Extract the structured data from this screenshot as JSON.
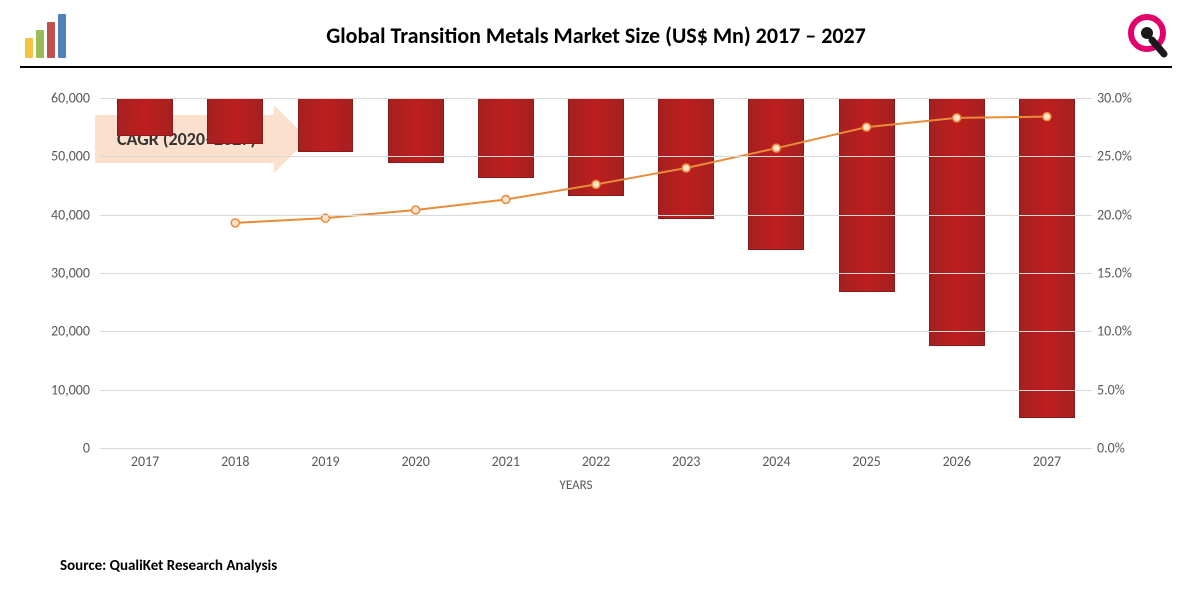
{
  "title": "Global Transition Metals Market Size (US$ Mn) 2017 – 2027",
  "cagr_label": "CAGR (2020–2027)",
  "source": "Source: QualiKet Research Analysis",
  "x_axis_title": "YEARS",
  "chart": {
    "type": "bar+line",
    "categories": [
      "2017",
      "2018",
      "2019",
      "2020",
      "2021",
      "2022",
      "2023",
      "2024",
      "2025",
      "2026",
      "2027"
    ],
    "bar_values": [
      6500,
      7800,
      9300,
      11200,
      13700,
      16800,
      20800,
      26000,
      33200,
      42500,
      54800
    ],
    "bar_color": "#b81e1e",
    "bar_border_color": "#8c1a1a",
    "line_values": [
      null,
      19.3,
      19.7,
      20.4,
      21.3,
      22.6,
      24.0,
      25.7,
      27.5,
      28.3,
      28.4
    ],
    "line_color": "#e88c3a",
    "marker_color": "#e88c3a",
    "marker_fill": "#fde2cc",
    "y_left": {
      "min": 0,
      "max": 60000,
      "step": 10000,
      "ticks": [
        "0",
        "10,000",
        "20,000",
        "30,000",
        "40,000",
        "50,000",
        "60,000"
      ]
    },
    "y_right": {
      "min": 0,
      "max": 30,
      "step": 5,
      "ticks": [
        "0.0%",
        "5.0%",
        "10.0%",
        "15.0%",
        "20.0%",
        "25.0%",
        "30.0%"
      ]
    },
    "background_color": "#ffffff",
    "grid_color": "#d9d9d9",
    "bar_width": 0.62,
    "title_fontsize": 22,
    "tick_fontsize": 14
  },
  "cagr_arrow": {
    "bg_color": "#fbe0cd",
    "font_size": 18
  }
}
